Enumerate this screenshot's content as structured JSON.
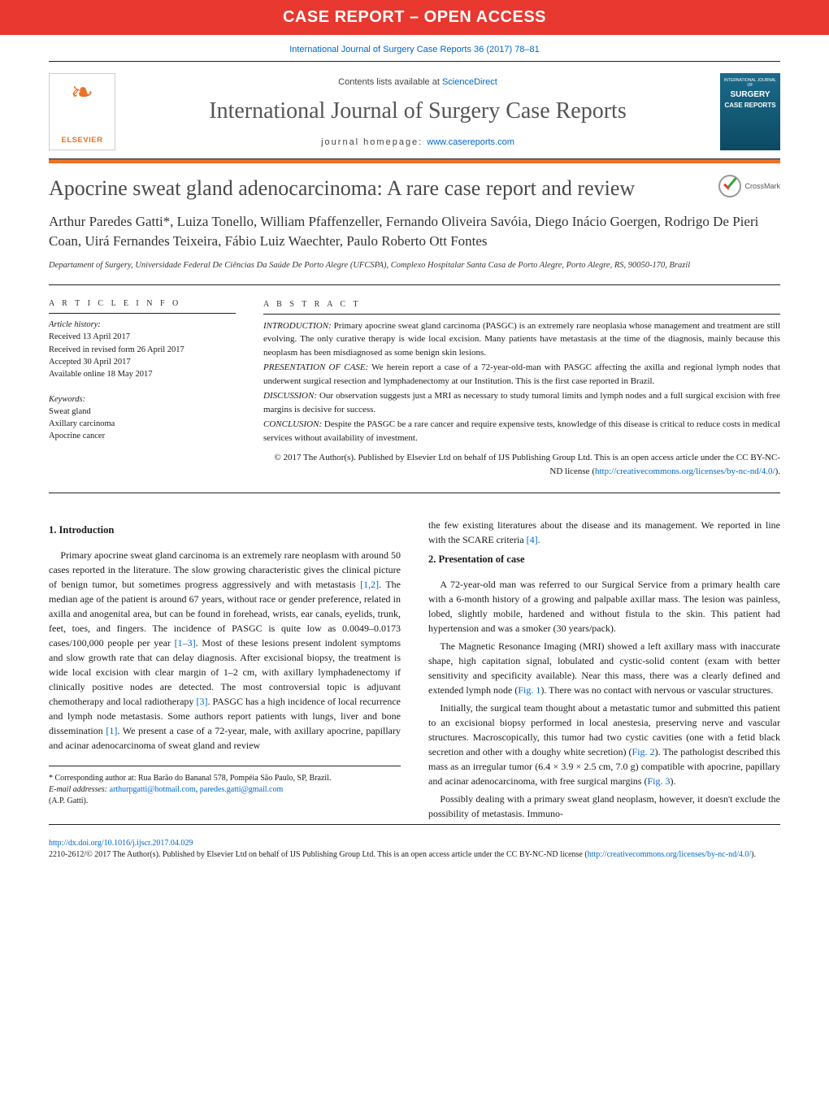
{
  "banner": {
    "red_bar": "CASE REPORT – OPEN ACCESS",
    "citation": "International Journal of Surgery Case Reports 36 (2017) 78–81",
    "contents_prefix": "Contents lists available at ",
    "contents_link": "ScienceDirect",
    "journal_title": "International Journal of Surgery Case Reports",
    "homepage_prefix": "journal homepage: ",
    "homepage_link": "www.casereports.com",
    "elsevier": "ELSEVIER",
    "cover_l1": "INTERNATIONAL JOURNAL OF",
    "cover_l2": "SURGERY",
    "cover_l3": "CASE REPORTS"
  },
  "article": {
    "title": "Apocrine sweat gland adenocarcinoma: A rare case report and review",
    "crossmark": "CrossMark",
    "authors": "Arthur Paredes Gatti*, Luiza Tonello, William Pfaffenzeller, Fernando Oliveira Savóia, Diego Inácio Goergen, Rodrigo De Pieri Coan, Uirá Fernandes Teixeira, Fábio Luiz Waechter, Paulo Roberto Ott Fontes",
    "affiliation": "Departament of Surgery, Universidade Federal De Ciências Da Saúde De Porto Alegre (UFCSPA), Complexo Hospitalar Santa Casa de Porto Alegre, Porto Alegre, RS, 90050-170, Brazil"
  },
  "meta": {
    "info_heading": "A R T I C L E  I N F O",
    "history_label": "Article history:",
    "received": "Received 13 April 2017",
    "revised": "Received in revised form 26 April 2017",
    "accepted": "Accepted 30 April 2017",
    "online": "Available online 18 May 2017",
    "keywords_label": "Keywords:",
    "kw1": "Sweat gland",
    "kw2": "Axillary carcinoma",
    "kw3": "Apocrine cancer"
  },
  "abstract": {
    "heading": "A B S T R A C T",
    "intro_label": "INTRODUCTION:",
    "intro": " Primary apocrine sweat gland carcinoma (PASGC) is an extremely rare neoplasia whose management and treatment are still evolving. The only curative therapy is wide local excision. Many patients have metastasis at the time of the diagnosis, mainly because this neoplasm has been misdiagnosed as some benign skin lesions.",
    "case_label": "PRESENTATION OF CASE:",
    "case": " We herein report a case of a 72-year-old-man with PASGC affecting the axilla and regional lymph nodes that underwent surgical resection and lymphadenectomy at our Institution. This is the first case reported in Brazil.",
    "disc_label": "DISCUSSION:",
    "disc": " Our observation suggests just a MRI as necessary to study tumoral limits and lymph nodes and a full surgical excision with free margins is decisive for success.",
    "conc_label": "CONCLUSION:",
    "conc": " Despite the PASGC be a rare cancer and require expensive tests, knowledge of this disease is critical to reduce costs in medical services without availability of investment.",
    "copyright": "© 2017 The Author(s). Published by Elsevier Ltd on behalf of IJS Publishing Group Ltd. This is an open access article under the CC BY-NC-ND license (",
    "copyright_link": "http://creativecommons.org/licenses/by-nc-nd/4.0/",
    "copyright_close": ")."
  },
  "body": {
    "h1": "1.  Introduction",
    "p1a": "Primary apocrine sweat gland carcinoma is an extremely rare neoplasm with around 50 cases reported in the literature. The slow growing characteristic gives the clinical picture of benign tumor, but sometimes progress aggressively and with metastasis ",
    "r12": "[1,2]",
    "p1b": ". The median age of the patient is around 67 years, without race or gender preference, related in axilla and anogenital area, but can be found in forehead, wrists, ear canals, eyelids, trunk, feet, toes, and fingers. The incidence of PASGC is quite low as 0.0049–0.0173 cases/100,000 people per year ",
    "r13": "[1–3]",
    "p1c": ". Most of these lesions present indolent symptoms and slow growth rate that can delay diagnosis. After excisional biopsy, the treatment is wide local excision with clear margin of 1–2 cm, with axillary lymphadenectomy if clinically positive nodes are detected. The most controversial topic is adjuvant chemotherapy and local radiotherapy ",
    "r3": "[3]",
    "p1d": ". PASGC has a high incidence of local recurrence and lymph node metastasis. Some authors report patients with lungs, liver and bone dissemination ",
    "r1": "[1]",
    "p1e": ". We present a case of a 72-year, male, with axillary apocrine, papillary and acinar adenocarcinoma of sweat gland and review ",
    "p1f": "the few existing literatures about the disease and its management. We reported in line with the SCARE criteria ",
    "r4": "[4]",
    "p1g": ".",
    "h2": "2.  Presentation of case",
    "p2": "A 72-year-old man was referred to our Surgical Service from a primary health care with a 6-month history of a growing and palpable axillar mass. The lesion was painless, lobed, slightly mobile, hardened and without fistula to the skin. This patient had hypertension and was a smoker (30 years/pack).",
    "p3a": "The Magnetic Resonance Imaging (MRI) showed a left axillary mass with inaccurate shape, high capitation signal, lobulated and cystic-solid content (exam with better sensitivity and specificity available). Near this mass, there was a clearly defined and extended lymph node (",
    "fig1": "Fig. 1",
    "p3b": "). There was no contact with nervous or vascular structures.",
    "p4a": "Initially, the surgical team thought about a metastatic tumor and submitted this patient to an excisional biopsy performed in local anestesia, preserving nerve and vascular structures. Macroscopically, this tumor had two cystic cavities (one with a fetid black secretion and other with a doughy white secretion) (",
    "fig2": "Fig. 2",
    "p4b": "). The pathologist described this mass as an irregular tumor (6.4 × 3.9 × 2.5 cm, 7.0 g) compatible with apocrine, papillary and acinar adenocarcinoma, with free surgical margins (",
    "fig3": "Fig. 3",
    "p4c": ").",
    "p5": "Possibly dealing with a primary sweat gland neoplasm, however, it doesn't exclude the possibility of metastasis. Immuno-"
  },
  "footnotes": {
    "corr": "* Corresponding author at: Rua Barão do Bananal 578, Pompéia São Paulo, SP, Brazil.",
    "email_label": "E-mail addresses: ",
    "email1": "arthurpgatti@hotmail.com",
    "email_sep": ", ",
    "email2": "paredes.gatti@gmail.com",
    "email_auth": "(A.P. Gatti)."
  },
  "bottom": {
    "doi": "http://dx.doi.org/10.1016/j.ijscr.2017.04.029",
    "issn_line_a": "2210-2612/© 2017 The Author(s). Published by Elsevier Ltd on behalf of IJS Publishing Group Ltd. This is an open access article under the CC BY-NC-ND license (",
    "issn_link": "http://creativecommons.org/licenses/by-nc-nd/4.0/",
    "issn_line_b": ")."
  },
  "colors": {
    "red": "#e8382f",
    "orange": "#e8732a",
    "link": "#0066cc",
    "cover_bg": "#1a6b8a"
  }
}
